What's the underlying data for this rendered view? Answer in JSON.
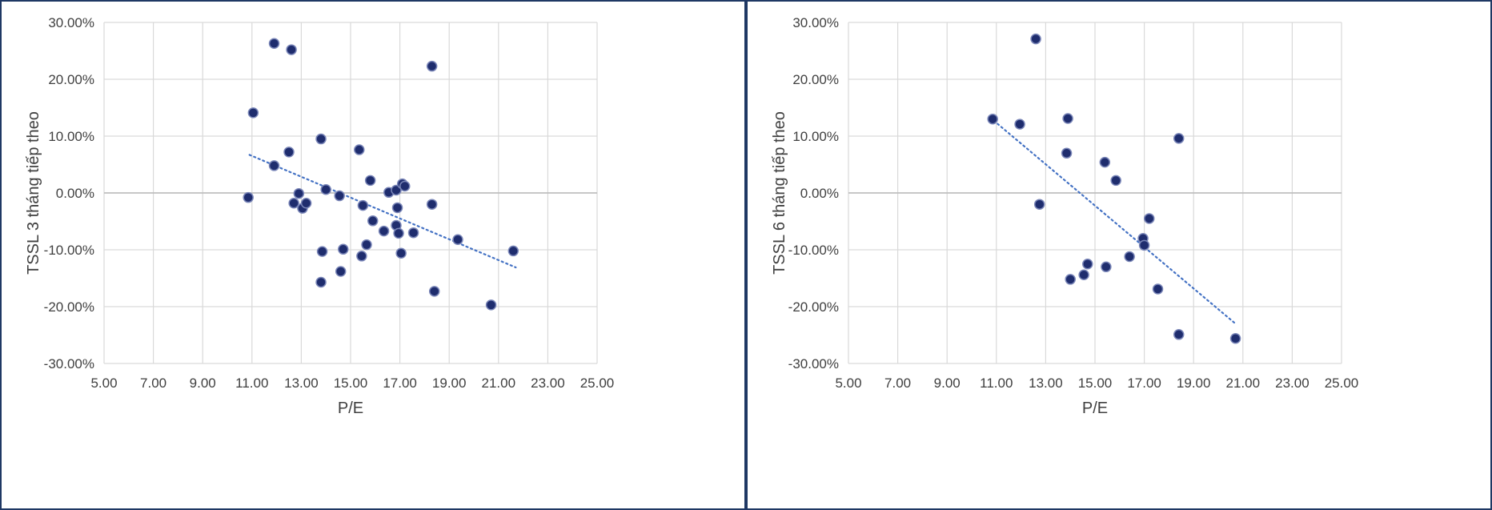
{
  "colors": {
    "point": "#1f2d6e",
    "point_ring": "#7a86b8",
    "trend": "#4472c4",
    "grid": "#d9d9d9",
    "zero_axis": "#bfbfbf",
    "border": "#1f3864"
  },
  "chart_data": [
    {
      "type": "scatter",
      "title": "",
      "xlabel": "P/E",
      "ylabel": "TSSL 3 tháng tiếp theo",
      "xlim": [
        5,
        25
      ],
      "ylim": [
        -0.3,
        0.3
      ],
      "grid": true,
      "x_ticks": [
        "5.00",
        "7.00",
        "9.00",
        "11.00",
        "13.00",
        "15.00",
        "17.00",
        "19.00",
        "21.00",
        "23.00",
        "25.00"
      ],
      "y_ticks": [
        "30.00%",
        "20.00%",
        "10.00%",
        "0.00%",
        "-10.00%",
        "-20.00%",
        "-30.00%"
      ],
      "trendline": {
        "style": "dotted linear",
        "x": [
          10.9,
          21.7
        ],
        "y": [
          0.067,
          -0.131
        ]
      },
      "points": [
        {
          "x": 10.85,
          "y": -0.008
        },
        {
          "x": 11.05,
          "y": 0.141
        },
        {
          "x": 11.9,
          "y": 0.263
        },
        {
          "x": 11.9,
          "y": 0.048
        },
        {
          "x": 12.5,
          "y": 0.072
        },
        {
          "x": 12.6,
          "y": 0.252
        },
        {
          "x": 12.7,
          "y": -0.018
        },
        {
          "x": 12.9,
          "y": -0.001
        },
        {
          "x": 13.05,
          "y": -0.027
        },
        {
          "x": 13.2,
          "y": -0.018
        },
        {
          "x": 13.8,
          "y": 0.095
        },
        {
          "x": 13.8,
          "y": -0.157
        },
        {
          "x": 13.85,
          "y": -0.103
        },
        {
          "x": 14.0,
          "y": 0.006
        },
        {
          "x": 14.55,
          "y": -0.005
        },
        {
          "x": 14.6,
          "y": -0.138
        },
        {
          "x": 14.7,
          "y": -0.099
        },
        {
          "x": 15.35,
          "y": 0.076
        },
        {
          "x": 15.45,
          "y": -0.111
        },
        {
          "x": 15.5,
          "y": -0.022
        },
        {
          "x": 15.65,
          "y": -0.091
        },
        {
          "x": 15.8,
          "y": 0.022
        },
        {
          "x": 15.9,
          "y": -0.049
        },
        {
          "x": 16.35,
          "y": -0.067
        },
        {
          "x": 16.55,
          "y": 0.001
        },
        {
          "x": 16.85,
          "y": 0.005
        },
        {
          "x": 16.85,
          "y": -0.057
        },
        {
          "x": 16.9,
          "y": -0.026
        },
        {
          "x": 16.95,
          "y": -0.071
        },
        {
          "x": 17.05,
          "y": -0.106
        },
        {
          "x": 17.1,
          "y": 0.016
        },
        {
          "x": 17.2,
          "y": 0.012
        },
        {
          "x": 17.55,
          "y": -0.07
        },
        {
          "x": 18.3,
          "y": 0.223
        },
        {
          "x": 18.3,
          "y": -0.02
        },
        {
          "x": 18.4,
          "y": -0.173
        },
        {
          "x": 19.35,
          "y": -0.082
        },
        {
          "x": 20.7,
          "y": -0.197
        },
        {
          "x": 21.6,
          "y": -0.102
        }
      ]
    },
    {
      "type": "scatter",
      "title": "",
      "xlabel": "P/E",
      "ylabel": "TSSL 6 tháng tiếp theo",
      "xlim": [
        5,
        25
      ],
      "ylim": [
        -0.3,
        0.3
      ],
      "grid": true,
      "x_ticks": [
        "5.00",
        "7.00",
        "9.00",
        "11.00",
        "13.00",
        "15.00",
        "17.00",
        "19.00",
        "21.00",
        "23.00",
        "25.00"
      ],
      "y_ticks": [
        "30.00%",
        "20.00%",
        "10.00%",
        "0.00%",
        "-10.00%",
        "-20.00%",
        "-30.00%"
      ],
      "trendline": {
        "style": "dotted linear",
        "x": [
          10.9,
          20.7
        ],
        "y": [
          0.127,
          -0.23
        ]
      },
      "points": [
        {
          "x": 10.85,
          "y": 0.13
        },
        {
          "x": 11.95,
          "y": 0.121
        },
        {
          "x": 12.6,
          "y": 0.271
        },
        {
          "x": 12.75,
          "y": -0.02
        },
        {
          "x": 13.85,
          "y": 0.07
        },
        {
          "x": 13.9,
          "y": 0.131
        },
        {
          "x": 14.0,
          "y": -0.152
        },
        {
          "x": 14.55,
          "y": -0.144
        },
        {
          "x": 14.7,
          "y": -0.125
        },
        {
          "x": 15.4,
          "y": 0.054
        },
        {
          "x": 15.45,
          "y": -0.13
        },
        {
          "x": 15.85,
          "y": 0.022
        },
        {
          "x": 16.4,
          "y": -0.112
        },
        {
          "x": 16.95,
          "y": -0.08
        },
        {
          "x": 17.0,
          "y": -0.092
        },
        {
          "x": 17.2,
          "y": -0.045
        },
        {
          "x": 17.55,
          "y": -0.169
        },
        {
          "x": 18.4,
          "y": 0.096
        },
        {
          "x": 18.4,
          "y": -0.249
        },
        {
          "x": 20.7,
          "y": -0.256
        }
      ]
    }
  ]
}
